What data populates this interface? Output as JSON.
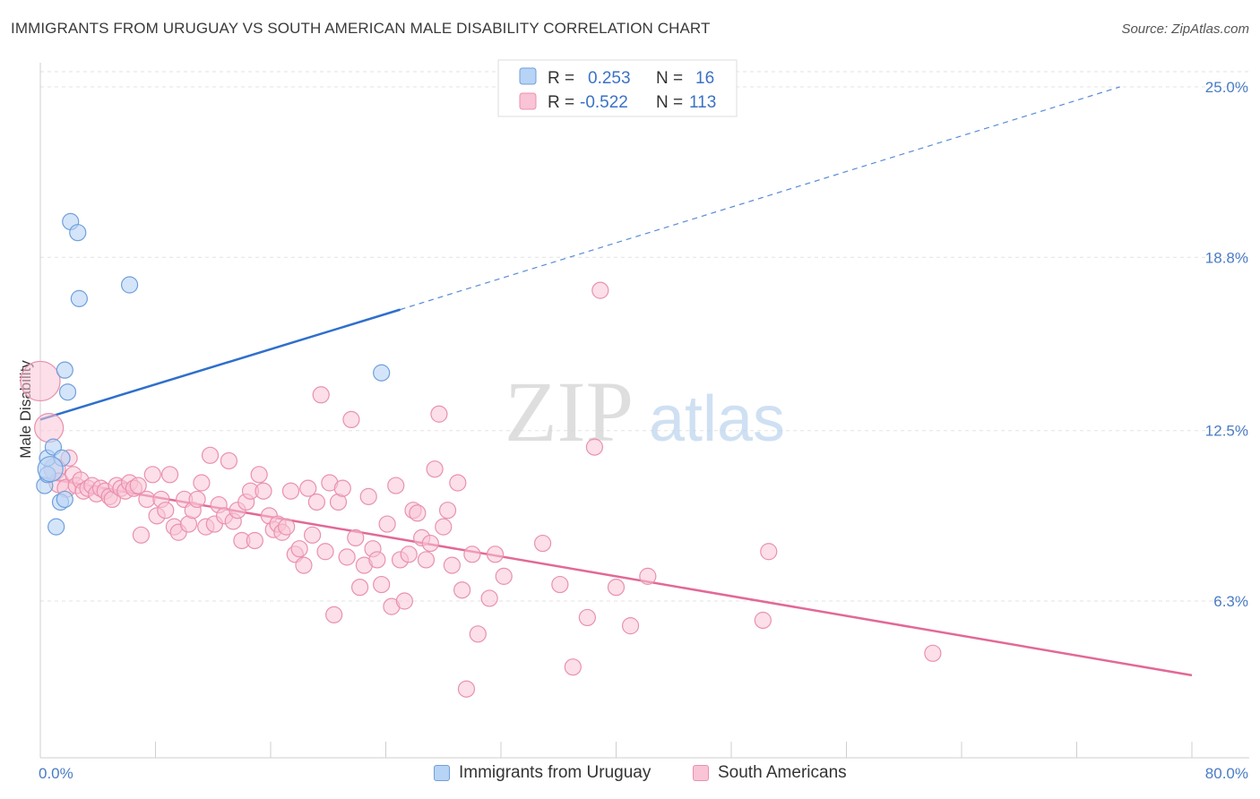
{
  "header": {
    "title": "IMMIGRANTS FROM URUGUAY VS SOUTH AMERICAN MALE DISABILITY CORRELATION CHART",
    "source": "Source: ZipAtlas.com"
  },
  "watermark": {
    "zip": "ZIP",
    "atlas": "atlas"
  },
  "legend_top": {
    "rows": [
      {
        "r_label": "R =",
        "r_value": "0.253",
        "n_label": "N =",
        "n_value": "16"
      },
      {
        "r_label": "R =",
        "r_value": "-0.522",
        "n_label": "N =",
        "n_value": "113"
      }
    ]
  },
  "colors": {
    "uruguay_fill": "#b7d3f5",
    "uruguay_stroke": "#6f9fdc",
    "uruguay_line": "#2f6fcc",
    "south_fill": "#f9c4d5",
    "south_stroke": "#e991ae",
    "south_line": "#e26996",
    "tick_label": "#4a7cc4",
    "grid": "#e3e3e3"
  },
  "chart_data": {
    "type": "scatter",
    "title": "IMMIGRANTS FROM URUGUAY VS SOUTH AMERICAN MALE DISABILITY CORRELATION CHART",
    "xlabel": "",
    "ylabel": "Male Disability",
    "xlim": [
      0,
      80
    ],
    "ylim": [
      0,
      26
    ],
    "x_tick_labels": [
      "0.0%",
      "80.0%"
    ],
    "y_ticks": [
      6.3,
      12.5,
      18.8,
      25.0
    ],
    "y_tick_labels": [
      "6.3%",
      "12.5%",
      "18.8%",
      "25.0%"
    ],
    "grid": true,
    "legend_position": "top-center",
    "series": [
      {
        "name": "Immigrants from Uruguay",
        "r": 0.253,
        "n": 16,
        "trend": {
          "x0": 0,
          "y0": 12.9,
          "x1": 25,
          "y1": 16.9,
          "dashed_to_x": 75,
          "dashed_to_y": 25.0
        },
        "points": [
          [
            0.3,
            10.5,
            9
          ],
          [
            0.5,
            10.9,
            9
          ],
          [
            0.5,
            11.5,
            9
          ],
          [
            0.9,
            11.9,
            9
          ],
          [
            1.1,
            9.0,
            9
          ],
          [
            1.4,
            9.9,
            9
          ],
          [
            1.5,
            11.5,
            9
          ],
          [
            1.7,
            14.7,
            9
          ],
          [
            1.7,
            10.0,
            9
          ],
          [
            1.9,
            13.9,
            9
          ],
          [
            2.1,
            20.1,
            9
          ],
          [
            2.6,
            19.7,
            9
          ],
          [
            2.7,
            17.3,
            9
          ],
          [
            6.2,
            17.8,
            9
          ],
          [
            23.7,
            14.6,
            9
          ],
          [
            0.7,
            11.1,
            14
          ]
        ]
      },
      {
        "name": "South Americans",
        "r": -0.522,
        "n": 113,
        "trend": {
          "x0": 0,
          "y0": 10.8,
          "x1": 80,
          "y1": 3.6
        },
        "points": [
          [
            0.0,
            14.3,
            22
          ],
          [
            0.6,
            12.6,
            16
          ],
          [
            1.0,
            11.1,
            12
          ],
          [
            1.3,
            10.6,
            11
          ],
          [
            1.8,
            10.4,
            10
          ],
          [
            2.0,
            11.5,
            9
          ],
          [
            2.3,
            10.9,
            9
          ],
          [
            2.5,
            10.5,
            9
          ],
          [
            2.8,
            10.7,
            9
          ],
          [
            3.0,
            10.3,
            9
          ],
          [
            3.3,
            10.4,
            9
          ],
          [
            3.6,
            10.5,
            9
          ],
          [
            3.9,
            10.2,
            9
          ],
          [
            4.2,
            10.4,
            9
          ],
          [
            4.5,
            10.3,
            9
          ],
          [
            4.8,
            10.1,
            9
          ],
          [
            5.0,
            10.0,
            9
          ],
          [
            5.3,
            10.5,
            9
          ],
          [
            5.6,
            10.4,
            9
          ],
          [
            5.9,
            10.3,
            9
          ],
          [
            6.2,
            10.6,
            9
          ],
          [
            6.5,
            10.4,
            9
          ],
          [
            6.8,
            10.5,
            9
          ],
          [
            7.0,
            8.7,
            9
          ],
          [
            7.4,
            10.0,
            9
          ],
          [
            7.8,
            10.9,
            9
          ],
          [
            8.1,
            9.4,
            9
          ],
          [
            8.4,
            10.0,
            9
          ],
          [
            8.7,
            9.6,
            9
          ],
          [
            9.0,
            10.9,
            9
          ],
          [
            9.3,
            9.0,
            9
          ],
          [
            9.6,
            8.8,
            9
          ],
          [
            10.0,
            10.0,
            9
          ],
          [
            10.3,
            9.1,
            9
          ],
          [
            10.6,
            9.6,
            9
          ],
          [
            10.9,
            10.0,
            9
          ],
          [
            11.2,
            10.6,
            9
          ],
          [
            11.5,
            9.0,
            9
          ],
          [
            11.8,
            11.6,
            9
          ],
          [
            12.1,
            9.1,
            9
          ],
          [
            12.4,
            9.8,
            9
          ],
          [
            12.8,
            9.4,
            9
          ],
          [
            13.1,
            11.4,
            9
          ],
          [
            13.4,
            9.2,
            9
          ],
          [
            13.7,
            9.6,
            9
          ],
          [
            14.0,
            8.5,
            9
          ],
          [
            14.3,
            9.9,
            9
          ],
          [
            14.6,
            10.3,
            9
          ],
          [
            14.9,
            8.5,
            9
          ],
          [
            15.2,
            10.9,
            9
          ],
          [
            15.5,
            10.3,
            9
          ],
          [
            15.9,
            9.4,
            9
          ],
          [
            16.2,
            8.9,
            9
          ],
          [
            16.5,
            9.1,
            9
          ],
          [
            16.8,
            8.8,
            9
          ],
          [
            17.1,
            9.0,
            9
          ],
          [
            17.4,
            10.3,
            9
          ],
          [
            17.7,
            8.0,
            9
          ],
          [
            18.0,
            8.2,
            9
          ],
          [
            18.3,
            7.6,
            9
          ],
          [
            18.6,
            10.4,
            9
          ],
          [
            18.9,
            8.7,
            9
          ],
          [
            19.2,
            9.9,
            9
          ],
          [
            19.5,
            13.8,
            9
          ],
          [
            19.8,
            8.1,
            9
          ],
          [
            20.1,
            10.6,
            9
          ],
          [
            20.4,
            5.8,
            9
          ],
          [
            20.7,
            9.9,
            9
          ],
          [
            21.0,
            10.4,
            9
          ],
          [
            21.3,
            7.9,
            9
          ],
          [
            21.6,
            12.9,
            9
          ],
          [
            21.9,
            8.6,
            9
          ],
          [
            22.2,
            6.8,
            9
          ],
          [
            22.5,
            7.6,
            9
          ],
          [
            22.8,
            10.1,
            9
          ],
          [
            23.1,
            8.2,
            9
          ],
          [
            23.4,
            7.8,
            9
          ],
          [
            23.7,
            6.9,
            9
          ],
          [
            24.1,
            9.1,
            9
          ],
          [
            24.4,
            6.1,
            9
          ],
          [
            24.7,
            10.5,
            9
          ],
          [
            25.0,
            7.8,
            9
          ],
          [
            25.3,
            6.3,
            9
          ],
          [
            25.6,
            8.0,
            9
          ],
          [
            25.9,
            9.6,
            9
          ],
          [
            26.2,
            9.5,
            9
          ],
          [
            26.5,
            8.6,
            9
          ],
          [
            26.8,
            7.8,
            9
          ],
          [
            27.1,
            8.4,
            9
          ],
          [
            27.4,
            11.1,
            9
          ],
          [
            27.7,
            13.1,
            9
          ],
          [
            28.0,
            9.0,
            9
          ],
          [
            28.3,
            9.6,
            9
          ],
          [
            28.6,
            7.6,
            9
          ],
          [
            29.0,
            10.6,
            9
          ],
          [
            29.3,
            6.7,
            9
          ],
          [
            29.6,
            3.1,
            9
          ],
          [
            30.0,
            8.0,
            9
          ],
          [
            30.4,
            5.1,
            9
          ],
          [
            31.2,
            6.4,
            9
          ],
          [
            31.6,
            8.0,
            9
          ],
          [
            32.2,
            7.2,
            9
          ],
          [
            34.9,
            8.4,
            9
          ],
          [
            36.1,
            6.9,
            9
          ],
          [
            37.0,
            3.9,
            9
          ],
          [
            38.0,
            5.7,
            9
          ],
          [
            38.5,
            11.9,
            9
          ],
          [
            38.9,
            17.6,
            9
          ],
          [
            40.0,
            6.8,
            9
          ],
          [
            41.0,
            5.4,
            9
          ],
          [
            42.2,
            7.2,
            9
          ],
          [
            50.2,
            5.6,
            9
          ],
          [
            50.6,
            8.1,
            9
          ],
          [
            62.0,
            4.4,
            9
          ]
        ]
      }
    ]
  },
  "legend_bottom": {
    "items": [
      {
        "label": "Immigrants from Uruguay"
      },
      {
        "label": "South Americans"
      }
    ]
  }
}
